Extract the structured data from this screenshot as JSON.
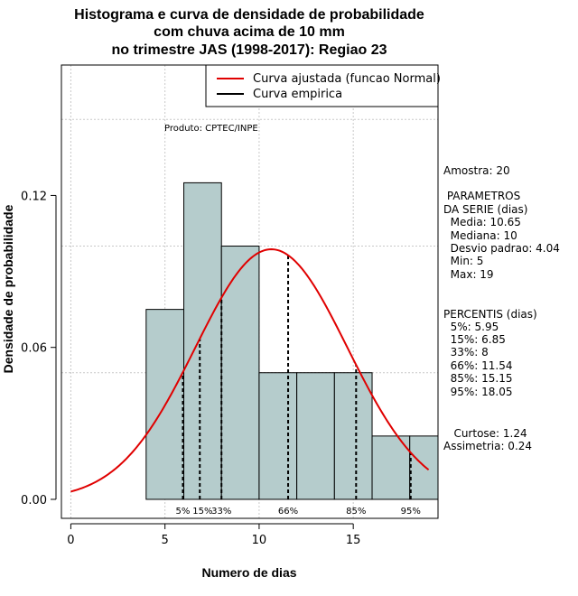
{
  "chart_data": {
    "type": "bar",
    "title": [
      "Histograma e curva de densidade de probabilidade",
      "com chuva acima de 10 mm",
      "no trimestre JAS (1998-2017): Regiao 23"
    ],
    "xlabel": "Numero de dias",
    "ylabel": "Densidade de probabilidade",
    "xlim": [
      -0.5,
      19.5
    ],
    "ylim": [
      -0.0075,
      0.1715
    ],
    "x_ticks": [
      0,
      5,
      10,
      15
    ],
    "y_ticks": [
      0.0,
      0.06,
      0.12
    ],
    "y_tick_labels": [
      "0.00",
      "0.06",
      "0.12"
    ],
    "grid": true,
    "grid_x": [
      0,
      5,
      10,
      15
    ],
    "grid_y": [
      0.05,
      0.1,
      0.15
    ],
    "bar_color": "#b5cccc",
    "bins": [
      {
        "x0": 4,
        "x1": 6,
        "density": 0.075
      },
      {
        "x0": 6,
        "x1": 8,
        "density": 0.125
      },
      {
        "x0": 8,
        "x1": 10,
        "density": 0.1
      },
      {
        "x0": 10,
        "x1": 12,
        "density": 0.05
      },
      {
        "x0": 12,
        "x1": 14,
        "density": 0.05
      },
      {
        "x0": 14,
        "x1": 16,
        "density": 0.05
      },
      {
        "x0": 16,
        "x1": 18,
        "density": 0.025
      },
      {
        "x0": 18,
        "x1": 20,
        "density": 0.025
      }
    ],
    "normal_curve": {
      "mean": 10.65,
      "sd": 4.04,
      "x_from": 0,
      "x_to": 19,
      "color": "#e00000"
    },
    "percentile_lines": [
      {
        "label": "5%",
        "x": 5.95
      },
      {
        "label": "15%",
        "x": 6.85
      },
      {
        "label": "33%",
        "x": 8
      },
      {
        "label": "66%",
        "x": 11.54
      },
      {
        "label": "85%",
        "x": 15.15
      },
      {
        "label": "95%",
        "x": 18.05
      }
    ],
    "percentile_axis_labels": [
      {
        "text": "5%",
        "x": 5.95
      },
      {
        "text": "15%",
        "x": 7.0
      },
      {
        "text": "33%",
        "x": 8.0
      },
      {
        "text": "66%",
        "x": 11.54
      },
      {
        "text": "85%",
        "x": 15.15
      },
      {
        "text": "95%",
        "x": 18.05
      }
    ],
    "legend": [
      {
        "label": "Curva ajustada (funcao Normal)",
        "color": "#e00000"
      },
      {
        "label": "Curva empirica",
        "color": "#000000"
      }
    ],
    "legend_position": "top-right",
    "annotation": "Produto: CPTEC/INPE"
  },
  "stats": {
    "amostra": "Amostra: 20",
    "parametros": [
      " PARAMETROS",
      "DA SERIE (dias)",
      "  Media: 10.65",
      "  Mediana: 10",
      "  Desvio padrao: 4.04",
      "  Min: 5",
      "  Max: 19"
    ],
    "percentis": [
      "PERCENTIS (dias)",
      "  5%: 5.95",
      "  15%: 6.85",
      "  33%: 8",
      "  66%: 11.54",
      "  85%: 15.15",
      "  95%: 18.05"
    ],
    "curtose": "   Curtose: 1.24",
    "assimetria": "Assimetria: 0.24"
  }
}
